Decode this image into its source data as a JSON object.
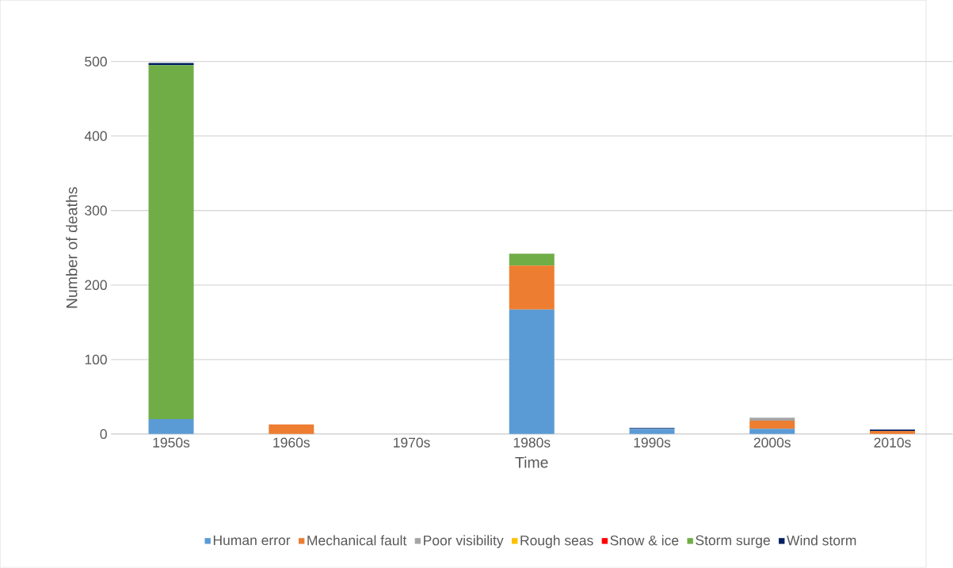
{
  "chart_data": {
    "type": "bar",
    "stacked": true,
    "xlabel": "Time",
    "ylabel": "Number of deaths",
    "categories": [
      "1950s",
      "1960s",
      "1970s",
      "1980s",
      "1990s",
      "2000s",
      "2010s"
    ],
    "series": [
      {
        "name": "Human error",
        "color": "#5b9bd5",
        "values": [
          20,
          0,
          0,
          167,
          7,
          7,
          0
        ]
      },
      {
        "name": "Mechanical fault",
        "color": "#ed7d31",
        "values": [
          0,
          13,
          0,
          59,
          0,
          11,
          4
        ]
      },
      {
        "name": "Poor visibility",
        "color": "#a5a5a5",
        "values": [
          0,
          0,
          0,
          0,
          0,
          4,
          0
        ]
      },
      {
        "name": "Rough seas",
        "color": "#ffc000",
        "values": [
          0,
          0,
          0,
          0,
          0,
          0,
          0
        ]
      },
      {
        "name": "Snow & ice",
        "color": "#ff0000",
        "values": [
          0,
          0,
          0,
          0,
          0,
          0,
          0
        ]
      },
      {
        "name": "Storm surge",
        "color": "#70ad47",
        "values": [
          475,
          0,
          0,
          16,
          0,
          0,
          0
        ]
      },
      {
        "name": "Wind storm",
        "color": "#002060",
        "values": [
          3,
          0,
          0,
          0,
          1,
          0,
          2
        ]
      }
    ],
    "ylim": [
      0,
      500
    ],
    "yticks": [
      0,
      100,
      200,
      300,
      400,
      500
    ],
    "grid": "y",
    "legend": "bottom"
  }
}
